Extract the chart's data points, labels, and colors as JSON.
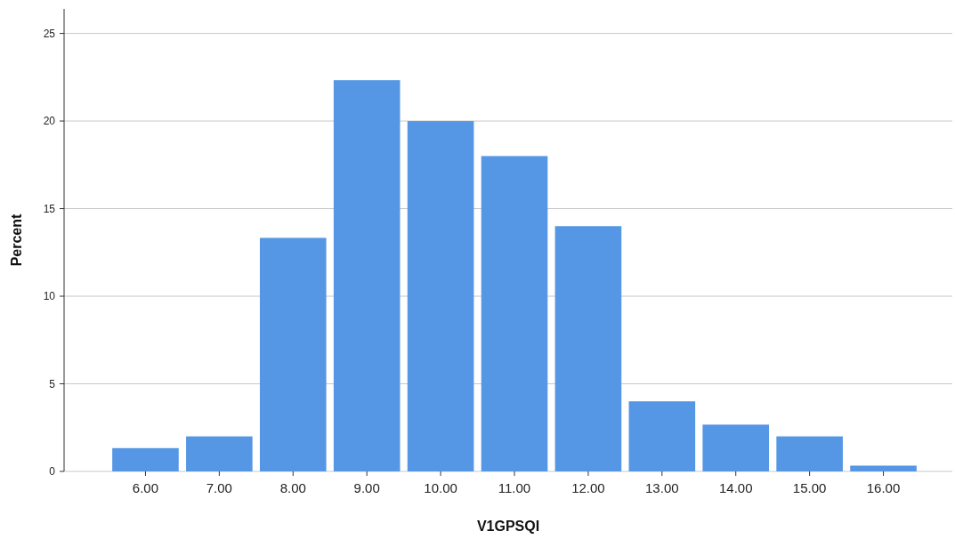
{
  "chart_data": {
    "type": "bar",
    "xlabel": "V1GPSQI",
    "ylabel": "Percent",
    "categories": [
      "6.00",
      "7.00",
      "8.00",
      "9.00",
      "10.00",
      "11.00",
      "12.00",
      "13.00",
      "14.00",
      "15.00",
      "16.00"
    ],
    "values": [
      1.33,
      2.0,
      13.33,
      22.33,
      20.0,
      18.0,
      14.0,
      4.0,
      2.67,
      2.0,
      0.33
    ],
    "color": "#5597e4",
    "ylim": [
      0,
      26.4
    ],
    "yticks": [
      0,
      5,
      10,
      15,
      20,
      25
    ],
    "grid": "y"
  }
}
